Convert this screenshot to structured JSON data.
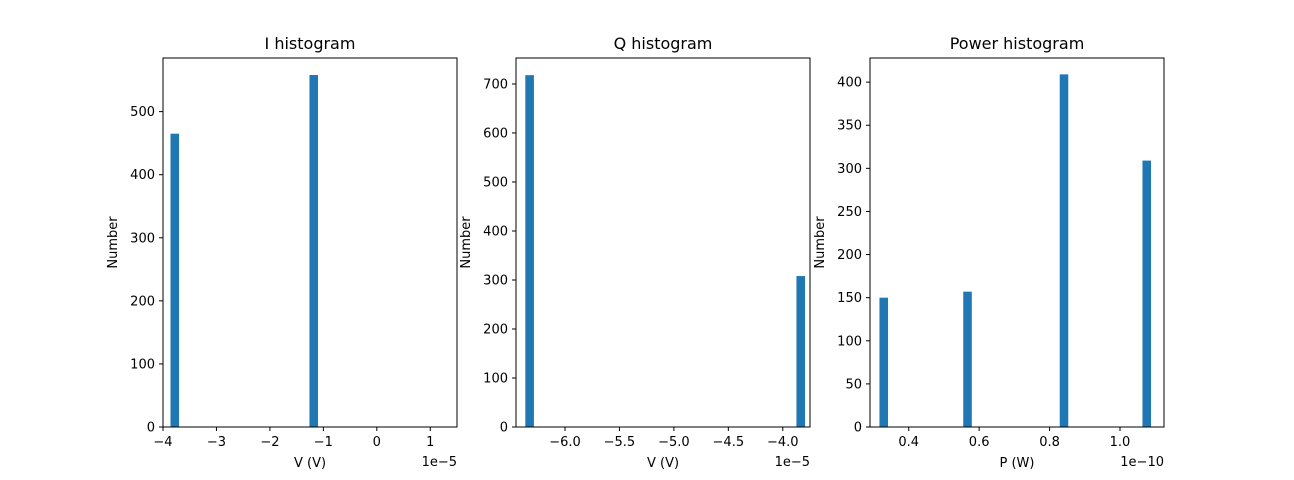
{
  "chart_data": [
    {
      "type": "bar",
      "title": "I histogram",
      "xlabel": "V (V)",
      "ylabel": "Number",
      "x_offset_text": "1e−5",
      "xlim": [
        -4.0,
        1.5
      ],
      "ylim": [
        0,
        585
      ],
      "bar_width": 0.16,
      "bars": [
        {
          "x": -3.78,
          "value": 465
        },
        {
          "x": -1.18,
          "value": 558
        }
      ],
      "xticks": [
        {
          "value": -4,
          "label": "−4"
        },
        {
          "value": -3,
          "label": "−3"
        },
        {
          "value": -2,
          "label": "−2"
        },
        {
          "value": -1,
          "label": "−1"
        },
        {
          "value": 0,
          "label": "0"
        },
        {
          "value": 1,
          "label": "1"
        }
      ],
      "yticks": [
        {
          "value": 0,
          "label": "0"
        },
        {
          "value": 100,
          "label": "100"
        },
        {
          "value": 200,
          "label": "200"
        },
        {
          "value": 300,
          "label": "300"
        },
        {
          "value": 400,
          "label": "400"
        },
        {
          "value": 500,
          "label": "500"
        }
      ],
      "color": "#1f77b4"
    },
    {
      "type": "bar",
      "title": "Q histogram",
      "xlabel": "V (V)",
      "ylabel": "Number",
      "x_offset_text": "1e−5",
      "xlim": [
        -6.45,
        -3.75
      ],
      "ylim": [
        0,
        753
      ],
      "bar_width": 0.079,
      "bars": [
        {
          "x": -6.325,
          "value": 718
        },
        {
          "x": -3.835,
          "value": 308
        }
      ],
      "xticks": [
        {
          "value": -6.0,
          "label": "−6.0"
        },
        {
          "value": -5.5,
          "label": "−5.5"
        },
        {
          "value": -5.0,
          "label": "−5.0"
        },
        {
          "value": -4.5,
          "label": "−4.5"
        },
        {
          "value": -4.0,
          "label": "−4.0"
        }
      ],
      "yticks": [
        {
          "value": 0,
          "label": "0"
        },
        {
          "value": 100,
          "label": "100"
        },
        {
          "value": 200,
          "label": "200"
        },
        {
          "value": 300,
          "label": "300"
        },
        {
          "value": 400,
          "label": "400"
        },
        {
          "value": 500,
          "label": "500"
        },
        {
          "value": 600,
          "label": "600"
        },
        {
          "value": 700,
          "label": "700"
        }
      ],
      "color": "#1f77b4"
    },
    {
      "type": "bar",
      "title": "Power histogram",
      "xlabel": "P (W)",
      "ylabel": "Number",
      "x_offset_text": "1e−10",
      "xlim": [
        0.29,
        1.125
      ],
      "ylim": [
        0,
        428
      ],
      "bar_width": 0.0243,
      "bars": [
        {
          "x": 0.329,
          "value": 150
        },
        {
          "x": 0.567,
          "value": 157
        },
        {
          "x": 0.841,
          "value": 409
        },
        {
          "x": 1.076,
          "value": 309
        }
      ],
      "xticks": [
        {
          "value": 0.4,
          "label": "0.4"
        },
        {
          "value": 0.6,
          "label": "0.6"
        },
        {
          "value": 0.8,
          "label": "0.8"
        },
        {
          "value": 1.0,
          "label": "1.0"
        }
      ],
      "yticks": [
        {
          "value": 0,
          "label": "0"
        },
        {
          "value": 50,
          "label": "50"
        },
        {
          "value": 100,
          "label": "100"
        },
        {
          "value": 150,
          "label": "150"
        },
        {
          "value": 200,
          "label": "200"
        },
        {
          "value": 250,
          "label": "250"
        },
        {
          "value": 300,
          "label": "300"
        },
        {
          "value": 350,
          "label": "350"
        },
        {
          "value": 400,
          "label": "400"
        }
      ],
      "color": "#1f77b4"
    }
  ]
}
